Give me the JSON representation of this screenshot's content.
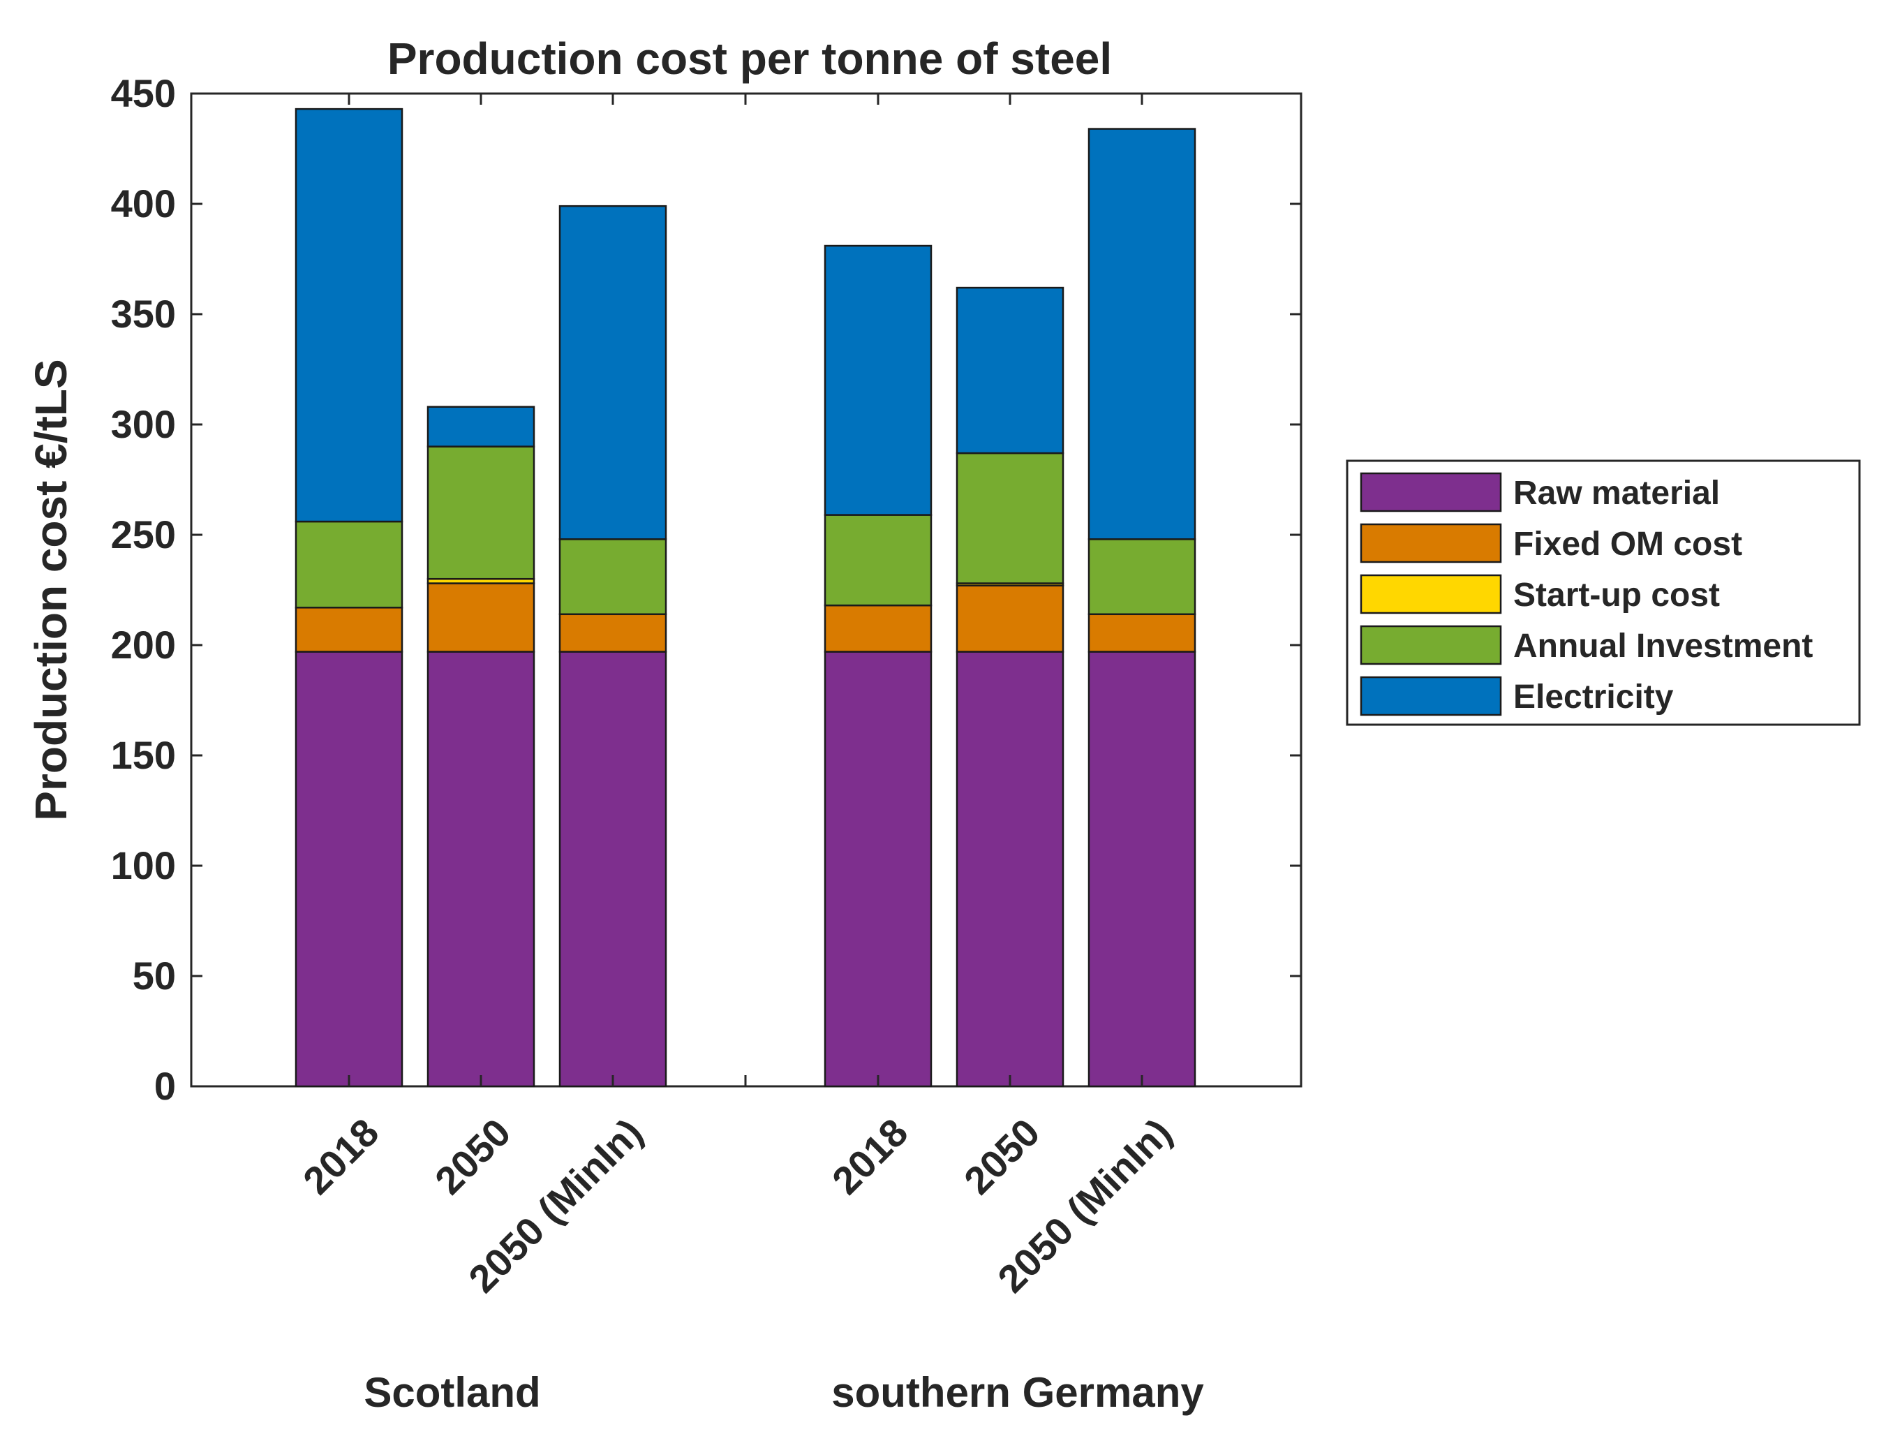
{
  "chart_data": {
    "type": "bar",
    "stacked": true,
    "title": "Production cost per tonne of steel",
    "ylabel": "Production cost €/tLS",
    "xlabel": "",
    "ylim": [
      0,
      450
    ],
    "yticks": [
      0,
      50,
      100,
      150,
      200,
      250,
      300,
      350,
      400,
      450
    ],
    "grid": false,
    "legend_position": "right",
    "groups": [
      {
        "name": "Scotland",
        "categories": [
          "2018",
          "2050",
          "2050 (MinIn)"
        ]
      },
      {
        "name": "southern Germany",
        "categories": [
          "2018",
          "2050",
          "2050 (MinIn)"
        ]
      }
    ],
    "categories": [
      "2018",
      "2050",
      "2050 (MinIn)",
      "2018",
      "2050",
      "2050 (MinIn)"
    ],
    "series": [
      {
        "name": "Raw material",
        "color": "#7E2F8E",
        "values": [
          197,
          197,
          197,
          197,
          197,
          197
        ]
      },
      {
        "name": "Fixed OM cost",
        "color": "#D97B00",
        "values": [
          20,
          31,
          17,
          21,
          30,
          17
        ]
      },
      {
        "name": "Start-up cost",
        "color": "#FFD700",
        "values": [
          0,
          2,
          0,
          0,
          1,
          0
        ]
      },
      {
        "name": "Annual Investment",
        "color": "#77AC30",
        "values": [
          39,
          60,
          34,
          41,
          59,
          34
        ]
      },
      {
        "name": "Electricity",
        "color": "#0072BD",
        "values": [
          187,
          18,
          151,
          122,
          75,
          186
        ]
      }
    ]
  }
}
